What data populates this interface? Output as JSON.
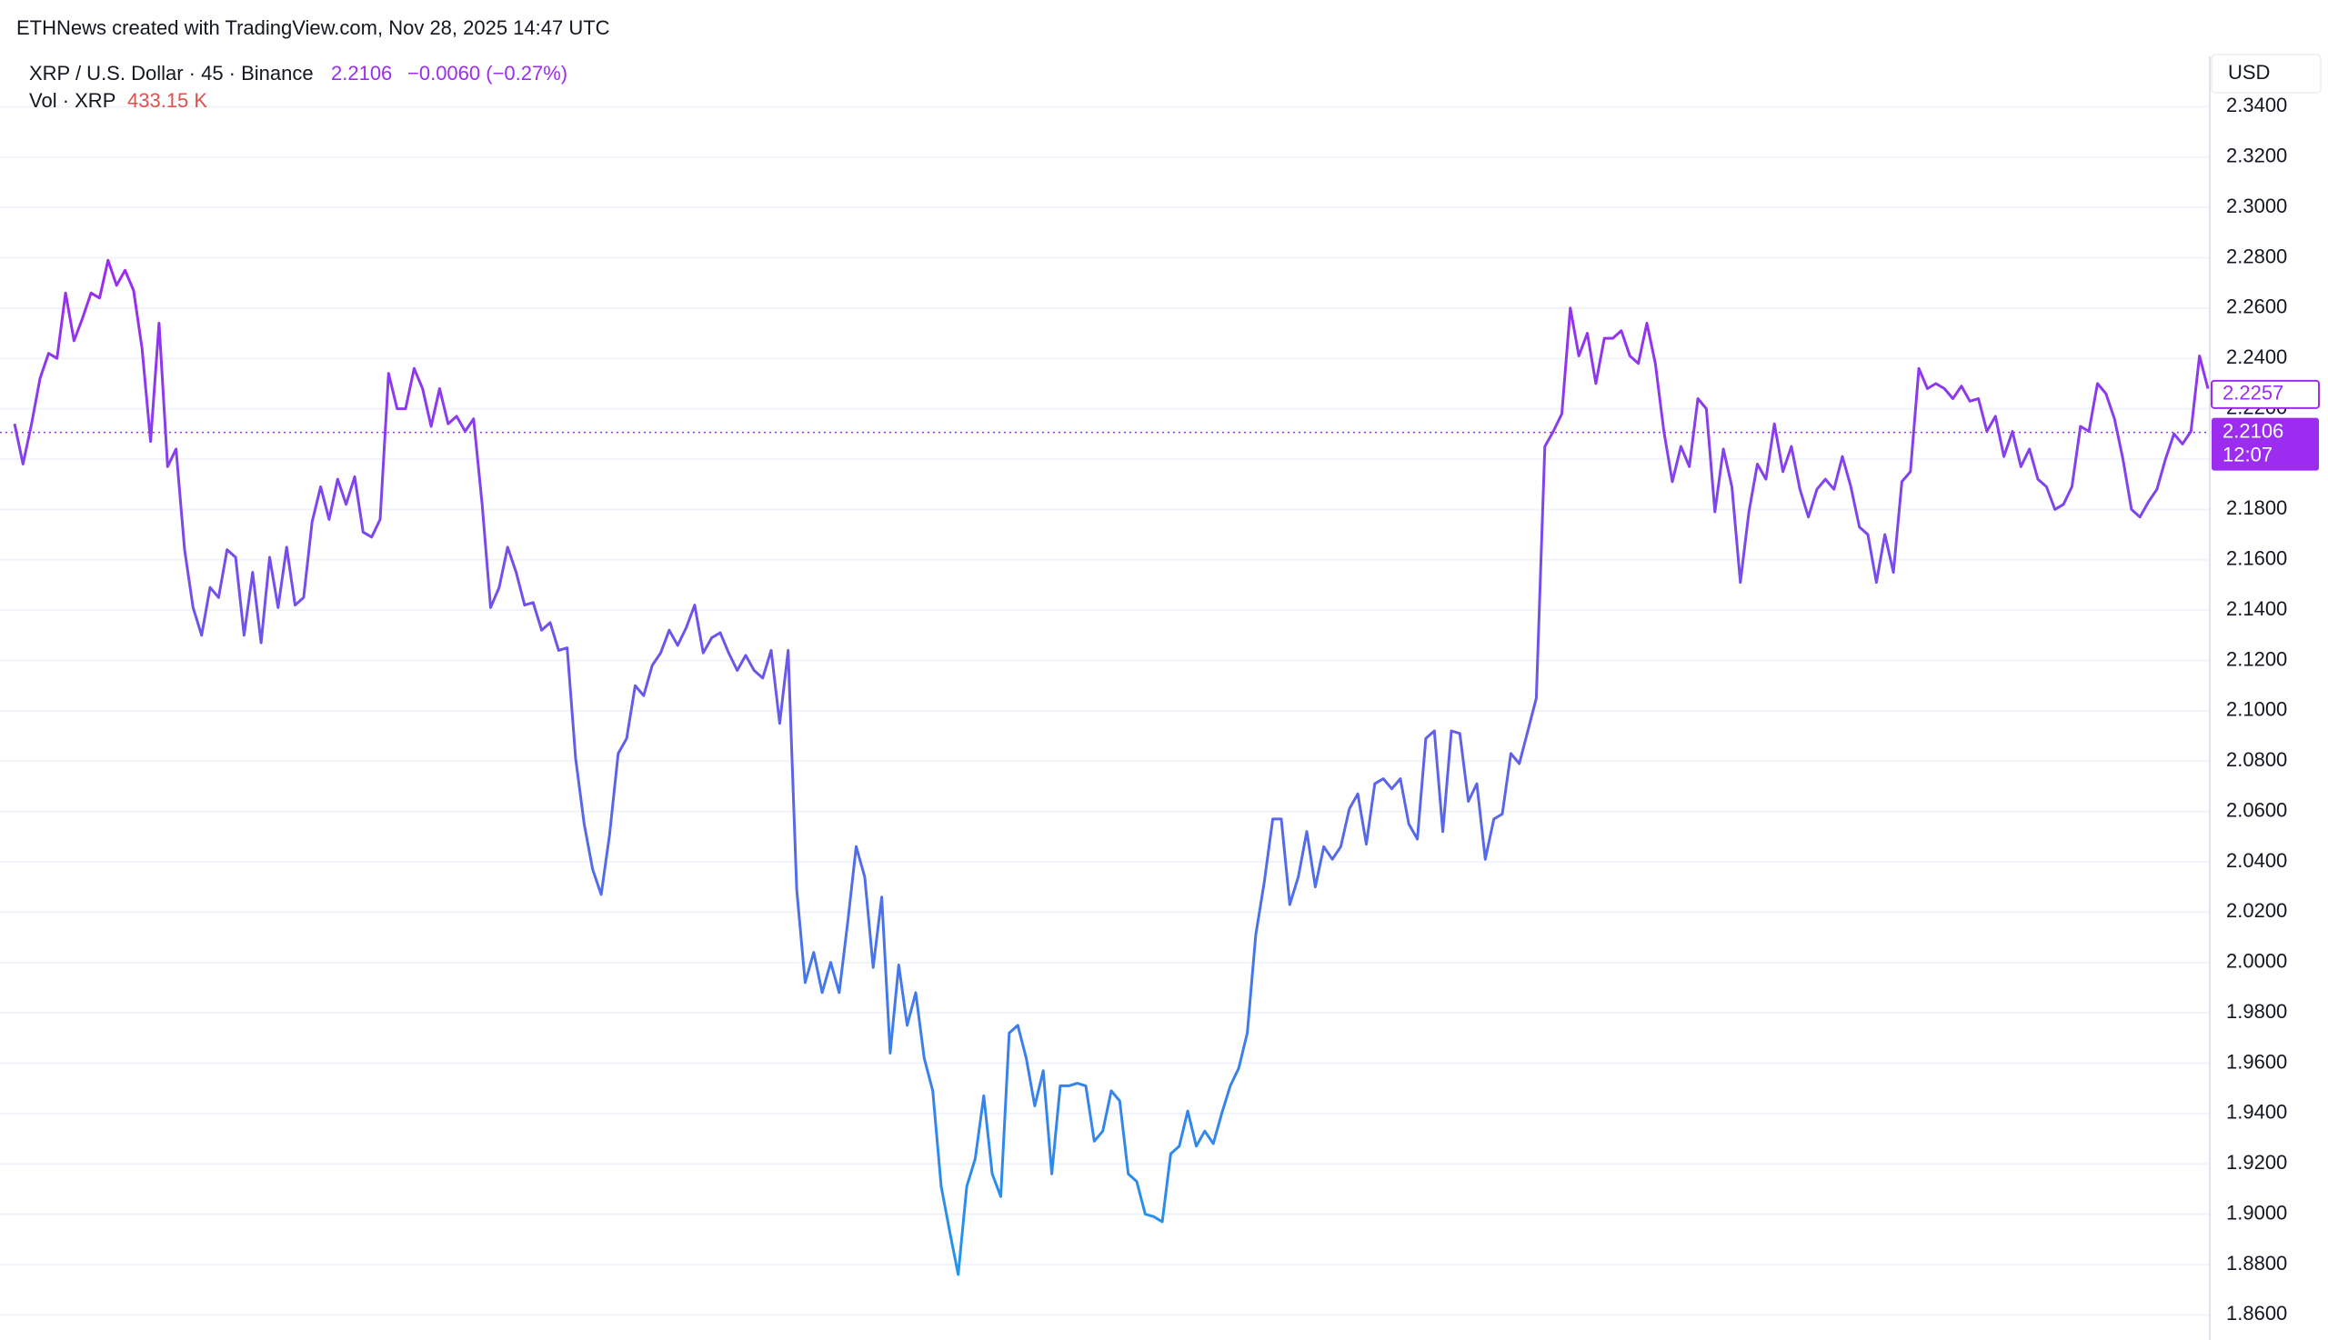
{
  "chart_data": {
    "type": "line",
    "caption": "ETHNews created with TradingView.com, Nov 28, 2025 14:47 UTC",
    "title": "XRP / U.S. Dollar · 45 · Binance",
    "last_price_text": "2.2106",
    "change_text": "−0.0060 (−0.27%)",
    "volume_title": "Vol · XRP",
    "volume_text": "433.15 K",
    "currency": "USD",
    "countdown": "12:07",
    "gradient_colors": [
      "#9c2cf0",
      "#5c64e8",
      "#1f97ec"
    ],
    "grid": true,
    "ylim": [
      1.85,
      2.36
    ],
    "yticks": [
      {
        "value": 1.86,
        "label": "1.8600"
      },
      {
        "value": 1.88,
        "label": "1.8800"
      },
      {
        "value": 1.9,
        "label": "1.9000"
      },
      {
        "value": 1.92,
        "label": "1.9200"
      },
      {
        "value": 1.94,
        "label": "1.9400"
      },
      {
        "value": 1.96,
        "label": "1.9600"
      },
      {
        "value": 1.98,
        "label": "1.9800"
      },
      {
        "value": 2.0,
        "label": "2.0000"
      },
      {
        "value": 2.02,
        "label": "2.0200"
      },
      {
        "value": 2.04,
        "label": "2.0400"
      },
      {
        "value": 2.06,
        "label": "2.0600"
      },
      {
        "value": 2.08,
        "label": "2.0800"
      },
      {
        "value": 2.1,
        "label": "2.1000"
      },
      {
        "value": 2.12,
        "label": "2.1200"
      },
      {
        "value": 2.14,
        "label": "2.1400"
      },
      {
        "value": 2.16,
        "label": "2.1600"
      },
      {
        "value": 2.18,
        "label": "2.1800"
      },
      {
        "value": 2.2,
        "label": "2.2000"
      },
      {
        "value": 2.22,
        "label": "2.2200"
      },
      {
        "value": 2.24,
        "label": "2.2400"
      },
      {
        "value": 2.26,
        "label": "2.2600"
      },
      {
        "value": 2.28,
        "label": "2.2800"
      },
      {
        "value": 2.3,
        "label": "2.3000"
      },
      {
        "value": 2.32,
        "label": "2.3200"
      },
      {
        "value": 2.34,
        "label": "2.3400"
      }
    ],
    "price_markers": [
      {
        "value": 2.2257,
        "label": "2.2257"
      },
      {
        "value": 2.2106,
        "label": "2.2106"
      }
    ],
    "values": [
      2.214,
      2.198,
      2.214,
      2.232,
      2.242,
      2.24,
      2.266,
      2.247,
      2.256,
      2.266,
      2.264,
      2.279,
      2.269,
      2.275,
      2.267,
      2.244,
      2.207,
      2.254,
      2.197,
      2.204,
      2.164,
      2.141,
      2.13,
      2.149,
      2.145,
      2.164,
      2.161,
      2.13,
      2.155,
      2.127,
      2.161,
      2.141,
      2.165,
      2.142,
      2.145,
      2.175,
      2.189,
      2.176,
      2.192,
      2.182,
      2.193,
      2.171,
      2.169,
      2.176,
      2.234,
      2.22,
      2.22,
      2.236,
      2.228,
      2.213,
      2.228,
      2.214,
      2.217,
      2.211,
      2.216,
      2.182,
      2.141,
      2.149,
      2.165,
      2.155,
      2.142,
      2.143,
      2.132,
      2.135,
      2.124,
      2.125,
      2.081,
      2.055,
      2.037,
      2.027,
      2.051,
      2.083,
      2.089,
      2.11,
      2.106,
      2.118,
      2.123,
      2.132,
      2.126,
      2.133,
      2.142,
      2.123,
      2.129,
      2.131,
      2.123,
      2.116,
      2.122,
      2.116,
      2.113,
      2.124,
      2.095,
      2.124,
      2.029,
      1.992,
      2.004,
      1.988,
      2.0,
      1.988,
      2.016,
      2.046,
      2.034,
      1.998,
      2.026,
      1.964,
      1.999,
      1.975,
      1.988,
      1.962,
      1.949,
      1.911,
      1.893,
      1.876,
      1.911,
      1.922,
      1.947,
      1.916,
      1.907,
      1.972,
      1.975,
      1.962,
      1.943,
      1.957,
      1.916,
      1.951,
      1.951,
      1.952,
      1.951,
      1.929,
      1.933,
      1.949,
      1.945,
      1.916,
      1.913,
      1.9,
      1.899,
      1.897,
      1.924,
      1.927,
      1.941,
      1.927,
      1.933,
      1.928,
      1.94,
      1.951,
      1.958,
      1.972,
      2.011,
      2.032,
      2.057,
      2.057,
      2.023,
      2.034,
      2.052,
      2.03,
      2.046,
      2.041,
      2.046,
      2.061,
      2.067,
      2.047,
      2.071,
      2.073,
      2.069,
      2.073,
      2.055,
      2.049,
      2.089,
      2.092,
      2.052,
      2.092,
      2.091,
      2.064,
      2.071,
      2.041,
      2.057,
      2.059,
      2.083,
      2.079,
      2.092,
      2.105,
      2.205,
      2.211,
      2.218,
      2.26,
      2.241,
      2.25,
      2.23,
      2.248,
      2.248,
      2.251,
      2.241,
      2.238,
      2.254,
      2.238,
      2.211,
      2.191,
      2.205,
      2.197,
      2.224,
      2.22,
      2.179,
      2.204,
      2.189,
      2.151,
      2.179,
      2.198,
      2.192,
      2.214,
      2.195,
      2.205,
      2.188,
      2.177,
      2.188,
      2.192,
      2.188,
      2.201,
      2.189,
      2.173,
      2.17,
      2.151,
      2.17,
      2.155,
      2.191,
      2.195,
      2.236,
      2.228,
      2.23,
      2.228,
      2.224,
      2.229,
      2.223,
      2.224,
      2.211,
      2.217,
      2.201,
      2.211,
      2.197,
      2.204,
      2.192,
      2.189,
      2.18,
      2.182,
      2.189,
      2.213,
      2.211,
      2.23,
      2.226,
      2.216,
      2.2,
      2.18,
      2.177,
      2.183,
      2.188,
      2.2,
      2.21,
      2.206,
      2.211,
      2.241,
      2.228
    ]
  }
}
